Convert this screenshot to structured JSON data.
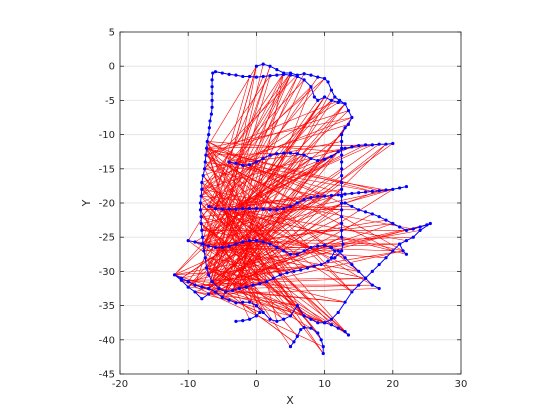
{
  "chart_data": {
    "type": "scatter",
    "title": "",
    "xlabel": "X",
    "ylabel": "Y",
    "xlim": [
      -20,
      30
    ],
    "ylim": [
      -45,
      5
    ],
    "xticks": [
      "-20",
      "-10",
      "0",
      "10",
      "20",
      "30"
    ],
    "yticks": [
      "5",
      "0",
      "-5",
      "-10",
      "-15",
      "-20",
      "-25",
      "-30",
      "-35",
      "-40",
      "-45"
    ],
    "grid": true,
    "colors": {
      "trajectory": "#0000ff",
      "constraints": "#ff0000",
      "grid": "#e6e6e6",
      "axes": "#262626"
    },
    "series": [
      {
        "style": "blue line with dot markers",
        "points": [
          [
            0,
            0
          ],
          [
            1,
            0.3
          ],
          [
            2,
            0
          ],
          [
            3,
            -0.5
          ],
          [
            4,
            -1
          ],
          [
            5,
            -1
          ],
          [
            6,
            -1.3
          ],
          [
            7,
            -1.1
          ],
          [
            8,
            -1.3
          ],
          [
            9,
            -1.6
          ],
          [
            10,
            -1.8
          ],
          [
            10.5,
            -2.3
          ],
          [
            11,
            -3.5
          ],
          [
            11.5,
            -4.5
          ],
          [
            12.2,
            -5
          ],
          [
            13,
            -5.5
          ],
          [
            13.5,
            -6.5
          ],
          [
            14,
            -7.5
          ],
          [
            13.5,
            -8.5
          ],
          [
            13,
            -9
          ],
          [
            12.5,
            -10
          ],
          [
            12.5,
            -11
          ],
          [
            12.5,
            -12
          ],
          [
            12.5,
            -13
          ],
          [
            12.5,
            -14
          ],
          [
            12.5,
            -15
          ],
          [
            12.5,
            -16
          ],
          [
            12.5,
            -17
          ],
          [
            12.5,
            -18
          ],
          [
            12.5,
            -19
          ],
          [
            12.5,
            -20
          ],
          [
            12.5,
            -21
          ],
          [
            12.5,
            -22
          ],
          [
            12.5,
            -23
          ],
          [
            12.5,
            -24
          ],
          [
            12.5,
            -25
          ],
          [
            12.7,
            -26
          ],
          [
            12.5,
            -27
          ],
          [
            11.5,
            -28
          ],
          [
            10.5,
            -28.5
          ],
          [
            9.5,
            -29
          ],
          [
            8.5,
            -29.2
          ],
          [
            7.5,
            -29.5
          ],
          [
            6.5,
            -29.8
          ],
          [
            5.5,
            -30
          ],
          [
            4.5,
            -30.2
          ],
          [
            3.5,
            -30.5
          ],
          [
            2.5,
            -31
          ],
          [
            1.5,
            -31.5
          ],
          [
            0.5,
            -31.8
          ],
          [
            -0.5,
            -32
          ],
          [
            -1.5,
            -32.3
          ],
          [
            -2.5,
            -32.5
          ],
          [
            -3.5,
            -32.8
          ],
          [
            -4.5,
            -33
          ],
          [
            -5.5,
            -32.5
          ],
          [
            -6.5,
            -31.5
          ],
          [
            -7,
            -30.5
          ],
          [
            -7.3,
            -29.5
          ],
          [
            -7.5,
            -28
          ],
          [
            -7.7,
            -27
          ],
          [
            -7.8,
            -26
          ],
          [
            -7.9,
            -25
          ],
          [
            -8,
            -24
          ],
          [
            -8.1,
            -23
          ],
          [
            -8.1,
            -22
          ],
          [
            -8.2,
            -21
          ],
          [
            -8.2,
            -20
          ],
          [
            -8.1,
            -19
          ],
          [
            -8,
            -18
          ],
          [
            -8,
            -17
          ],
          [
            -7.8,
            -16
          ],
          [
            -7.6,
            -15
          ],
          [
            -7.5,
            -14
          ],
          [
            -7.4,
            -13
          ],
          [
            -7.3,
            -12
          ],
          [
            -7.2,
            -11
          ],
          [
            -7,
            -10
          ],
          [
            -6.9,
            -9
          ],
          [
            -6.8,
            -8
          ],
          [
            -6.6,
            -7
          ],
          [
            -6.5,
            -6
          ],
          [
            -6.5,
            -5
          ],
          [
            -6.5,
            -4
          ],
          [
            -6.5,
            -3
          ],
          [
            -6.5,
            -2
          ],
          [
            -6.4,
            -1
          ],
          [
            -6,
            -0.8
          ],
          [
            -5,
            -1
          ],
          [
            -4,
            -1.2
          ],
          [
            -3,
            -1.3
          ],
          [
            -2,
            -1.5
          ],
          [
            -1,
            -1.5
          ],
          [
            0,
            -1.6
          ],
          [
            1,
            -1.5
          ],
          [
            2,
            -1.4
          ],
          [
            3,
            -1.3
          ],
          [
            4,
            -1.2
          ],
          [
            5,
            -1.3
          ],
          [
            6,
            -1.5
          ],
          [
            7,
            -2
          ],
          [
            8,
            -3
          ],
          [
            8.5,
            -4.5
          ],
          [
            9,
            -5
          ],
          [
            10,
            -4.5
          ],
          [
            11,
            -5
          ],
          [
            12,
            -5.3
          ],
          [
            13,
            -5.5
          ]
        ]
      },
      {
        "style": "blue line with dot markers",
        "points": [
          [
            -4,
            -14
          ],
          [
            -3,
            -14.2
          ],
          [
            -2,
            -14.5
          ],
          [
            -1,
            -14.4
          ],
          [
            0,
            -14
          ],
          [
            1,
            -13.5
          ],
          [
            2,
            -13
          ],
          [
            3,
            -12.8
          ],
          [
            4,
            -12.7
          ],
          [
            5,
            -12.7
          ],
          [
            6,
            -12.8
          ],
          [
            7,
            -13
          ],
          [
            8,
            -13.5
          ],
          [
            9,
            -13.8
          ],
          [
            10,
            -13.6
          ],
          [
            11,
            -13.2
          ],
          [
            12,
            -12.5
          ],
          [
            13,
            -12
          ],
          [
            14,
            -11.8
          ],
          [
            15,
            -11.6
          ],
          [
            16,
            -11.5
          ],
          [
            17,
            -11.5
          ],
          [
            18,
            -11.4
          ],
          [
            19,
            -11.4
          ],
          [
            20,
            -11.3
          ]
        ]
      },
      {
        "style": "blue line with dot markers",
        "points": [
          [
            -7,
            -20.5
          ],
          [
            -6,
            -20.8
          ],
          [
            -5,
            -20.9
          ],
          [
            -4,
            -20.9
          ],
          [
            -3,
            -20.9
          ],
          [
            -2,
            -20.8
          ],
          [
            -1,
            -20.8
          ],
          [
            0,
            -20.8
          ],
          [
            1,
            -20.9
          ],
          [
            2,
            -21
          ],
          [
            3,
            -21
          ],
          [
            4,
            -20.8
          ],
          [
            5,
            -20.5
          ],
          [
            6,
            -20
          ],
          [
            7,
            -19.5
          ],
          [
            8,
            -19.2
          ],
          [
            9,
            -19
          ],
          [
            10,
            -19
          ],
          [
            11,
            -18.9
          ],
          [
            12,
            -18.8
          ],
          [
            13,
            -18.7
          ],
          [
            14,
            -18.6
          ],
          [
            15,
            -18.5
          ],
          [
            16,
            -18.4
          ],
          [
            17,
            -18.3
          ],
          [
            18,
            -18.2
          ],
          [
            19,
            -18.1
          ],
          [
            20,
            -18
          ],
          [
            21,
            -17.8
          ],
          [
            22,
            -17.6
          ]
        ]
      },
      {
        "style": "blue line with dot markers",
        "points": [
          [
            13,
            -20
          ],
          [
            14,
            -20.5
          ],
          [
            15,
            -21
          ],
          [
            16,
            -21.3
          ],
          [
            17,
            -21.6
          ],
          [
            18,
            -22
          ],
          [
            19,
            -22.5
          ],
          [
            20,
            -23
          ],
          [
            21,
            -23.5
          ],
          [
            22,
            -24
          ],
          [
            23,
            -23.8
          ],
          [
            24,
            -23.5
          ],
          [
            25,
            -23.2
          ],
          [
            25.5,
            -23
          ],
          [
            24,
            -24
          ],
          [
            23,
            -25
          ],
          [
            22,
            -25.5
          ],
          [
            21,
            -26
          ],
          [
            20,
            -27
          ],
          [
            19,
            -28
          ],
          [
            18,
            -29
          ],
          [
            17,
            -30
          ],
          [
            16,
            -31
          ],
          [
            15,
            -32
          ],
          [
            14,
            -33
          ],
          [
            13,
            -34.5
          ],
          [
            12,
            -36
          ],
          [
            11,
            -37
          ],
          [
            10,
            -37.5
          ],
          [
            9,
            -37.5
          ],
          [
            8,
            -37
          ],
          [
            7,
            -36.5
          ],
          [
            6,
            -35
          ],
          [
            5,
            -36.5
          ],
          [
            4,
            -37
          ],
          [
            3,
            -37.3
          ],
          [
            2,
            -37
          ],
          [
            1,
            -36
          ],
          [
            0,
            -35
          ],
          [
            -1,
            -34.5
          ],
          [
            -2,
            -34.5
          ],
          [
            -3,
            -34.6
          ],
          [
            -4,
            -34.2
          ],
          [
            -5,
            -33.8
          ],
          [
            -6,
            -33
          ],
          [
            -7,
            -32.5
          ],
          [
            -8,
            -32.3
          ],
          [
            -9,
            -32
          ],
          [
            -10,
            -31.5
          ],
          [
            -11,
            -31
          ],
          [
            -12,
            -30.5
          ],
          [
            -11,
            -31.3
          ],
          [
            -10,
            -32.3
          ],
          [
            -9,
            -33
          ],
          [
            -8,
            -34
          ],
          [
            -7,
            -33.3
          ]
        ]
      },
      {
        "style": "blue line with dot markers",
        "points": [
          [
            -10,
            -25.5
          ],
          [
            -9,
            -25.7
          ],
          [
            -8,
            -26
          ],
          [
            -7,
            -26.3
          ],
          [
            -6,
            -26.5
          ],
          [
            -5,
            -26.5
          ],
          [
            -4,
            -26.3
          ],
          [
            -3,
            -26
          ],
          [
            -2,
            -25.7
          ],
          [
            -1,
            -25.5
          ],
          [
            0,
            -25.5
          ],
          [
            1,
            -25.7
          ],
          [
            2,
            -26
          ],
          [
            3,
            -26.5
          ],
          [
            4,
            -27
          ],
          [
            5,
            -27.5
          ],
          [
            6,
            -27.5
          ],
          [
            7,
            -27
          ],
          [
            8,
            -26.5
          ],
          [
            9,
            -26.3
          ],
          [
            10,
            -26.2
          ],
          [
            11,
            -26.5
          ],
          [
            11.5,
            -27
          ],
          [
            11,
            -28
          ]
        ]
      },
      {
        "style": "blue line with dot markers",
        "points": [
          [
            -3,
            -37.3
          ],
          [
            -2,
            -37.2
          ],
          [
            -1,
            -37
          ],
          [
            0,
            -36.5
          ],
          [
            0.5,
            -36
          ]
        ]
      },
      {
        "style": "blue line with dot markers",
        "points": [
          [
            5,
            -41
          ],
          [
            5.5,
            -40.3
          ],
          [
            6,
            -39.5
          ],
          [
            6.5,
            -38.5
          ],
          [
            7,
            -38.2
          ],
          [
            8,
            -38.3
          ],
          [
            9,
            -39
          ],
          [
            9.5,
            -40
          ],
          [
            9.8,
            -41
          ],
          [
            9.8,
            -42
          ]
        ]
      },
      {
        "style": "blue line with dot markers",
        "points": [
          [
            10,
            -37.5
          ],
          [
            11,
            -37.8
          ],
          [
            12,
            -38.3
          ],
          [
            13,
            -38.8
          ],
          [
            13.5,
            -39.3
          ]
        ]
      },
      {
        "style": "blue line with dot markers",
        "points": [
          [
            12,
            -27
          ],
          [
            13,
            -28
          ],
          [
            14,
            -29
          ],
          [
            15,
            -30
          ],
          [
            16,
            -31
          ],
          [
            17,
            -32
          ],
          [
            18,
            -32.5
          ]
        ]
      },
      {
        "style": "blue line with dot markers",
        "points": [
          [
            21,
            -26
          ],
          [
            21.5,
            -27
          ],
          [
            22,
            -27.5
          ]
        ]
      }
    ]
  }
}
